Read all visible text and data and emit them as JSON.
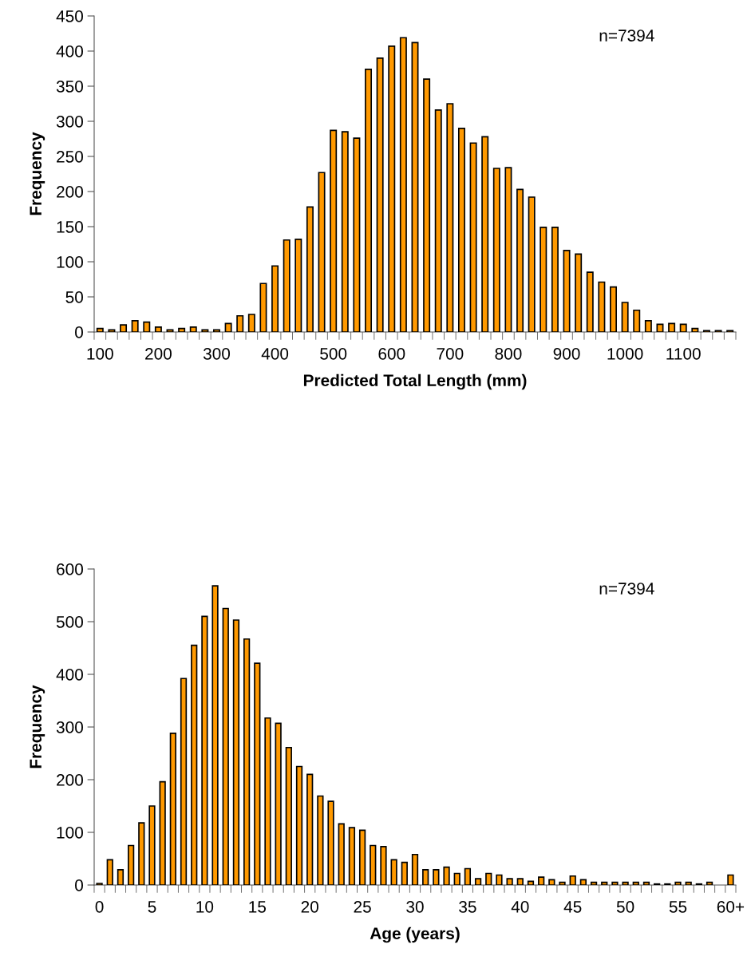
{
  "chart_data": [
    {
      "type": "bar",
      "xlabel": "Predicted Total Length (mm)",
      "ylabel": "Frequency",
      "annotations": [
        "n=7394"
      ],
      "categories": [
        "100",
        null,
        null,
        null,
        null,
        "200",
        null,
        null,
        null,
        null,
        "300",
        null,
        null,
        null,
        null,
        "400",
        null,
        null,
        null,
        null,
        "500",
        null,
        null,
        null,
        null,
        "600",
        null,
        null,
        null,
        null,
        "700",
        null,
        null,
        null,
        null,
        "800",
        null,
        null,
        null,
        null,
        "900",
        null,
        null,
        null,
        null,
        "1000",
        null,
        null,
        null,
        null,
        "1100",
        null,
        null,
        null,
        null
      ],
      "values": [
        5,
        3,
        10,
        16,
        14,
        7,
        3,
        5,
        7,
        3,
        3,
        12,
        23,
        25,
        69,
        94,
        131,
        132,
        178,
        227,
        287,
        285,
        276,
        374,
        390,
        407,
        419,
        412,
        360,
        316,
        325,
        290,
        269,
        278,
        233,
        234,
        203,
        192,
        149,
        149,
        116,
        111,
        85,
        71,
        64,
        42,
        31,
        16,
        11,
        12,
        11,
        5,
        2,
        2,
        2
      ],
      "color": "#ff9900",
      "ylim": [
        0,
        450
      ],
      "yticks": [
        0,
        50,
        100,
        150,
        200,
        250,
        300,
        350,
        400,
        450
      ],
      "grid": false,
      "legend": false
    },
    {
      "type": "bar",
      "xlabel": "Age (years)",
      "ylabel": "Frequency",
      "annotations": [
        "n=7394"
      ],
      "categories": [
        "0",
        null,
        null,
        null,
        null,
        "5",
        null,
        null,
        null,
        null,
        "10",
        null,
        null,
        null,
        null,
        "15",
        null,
        null,
        null,
        null,
        "20",
        null,
        null,
        null,
        null,
        "25",
        null,
        null,
        null,
        null,
        "30",
        null,
        null,
        null,
        null,
        "35",
        null,
        null,
        null,
        null,
        "40",
        null,
        null,
        null,
        null,
        "45",
        null,
        null,
        null,
        null,
        "50",
        null,
        null,
        null,
        null,
        "55",
        null,
        null,
        null,
        null,
        "60+"
      ],
      "values": [
        3,
        48,
        29,
        75,
        118,
        150,
        196,
        288,
        392,
        455,
        510,
        568,
        525,
        503,
        467,
        421,
        317,
        307,
        261,
        225,
        210,
        169,
        159,
        116,
        109,
        104,
        75,
        73,
        48,
        43,
        58,
        29,
        29,
        34,
        22,
        31,
        12,
        22,
        19,
        12,
        12,
        7,
        15,
        10,
        5,
        17,
        10,
        5,
        5,
        5,
        5,
        5,
        5,
        2,
        2,
        5,
        5,
        2,
        5,
        0,
        19
      ],
      "color": "#ff9900",
      "ylim": [
        0,
        600
      ],
      "yticks": [
        0,
        100,
        200,
        300,
        400,
        500,
        600
      ],
      "grid": false,
      "legend": false
    }
  ]
}
